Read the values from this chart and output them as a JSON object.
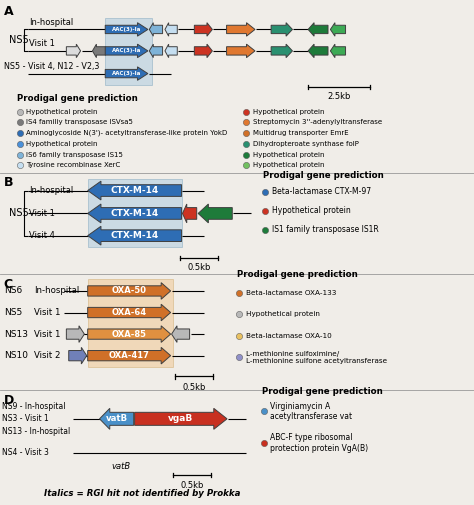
{
  "bg_color": "#f0ede8",
  "colors": {
    "dark_blue": "#2E6DB4",
    "medium_blue": "#4A90D9",
    "light_blue": "#7EB3D8",
    "very_light_blue": "#C5DEF0",
    "dark_gray": "#7A7A7A",
    "light_gray": "#B8B8B8",
    "very_light_gray": "#DCDCDC",
    "red": "#CC3322",
    "orange_str": "#E07830",
    "dark_orange": "#D07028",
    "mid_orange": "#E09040",
    "light_orange": "#E8C060",
    "dark_green": "#1E7B3A",
    "medium_green": "#3DAA55",
    "light_green": "#72C060",
    "teal_green": "#2A9070",
    "blue_vatB": "#4A90C8",
    "red_vgaB": "#C83020"
  },
  "legend_A_left_colors": [
    "#B8B8B8",
    "#7A7A7A",
    "#2E6DB4",
    "#4A90D9",
    "#7EB3D8",
    "#C5DEF0"
  ],
  "legend_A_left_texts": [
    "Hypothetical protein",
    "IS4 familiy transposase ISVsa5",
    "Aminoglycoside N(3')- acetyltransferase-like protein YokD",
    "Hypothetical protein",
    "IS6 family transposase IS15",
    "Tyrosine recombinase XerC"
  ],
  "legend_A_right_colors": [
    "#CC3322",
    "#E07830",
    "#D07028",
    "#2A9070",
    "#1E7B3A",
    "#72C060"
  ],
  "legend_A_right_texts": [
    "Hypothetical protein",
    "Streptomycin 3''-adenylyltransferase",
    "Multidrug transporter EmrE",
    "Dihydropteroate synthase folP",
    "Hypothetical protein",
    "Hypothetical protein"
  ],
  "legend_B_colors": [
    "#2E6DB4",
    "#CC3322",
    "#1E7B3A"
  ],
  "legend_B_texts": [
    "Beta-lactamase CTX-M-97",
    "Hypothetical protein",
    "IS1 family transposase IS1R"
  ],
  "legend_C_colors": [
    "#D07028",
    "#B8B8B8",
    "#E8C060",
    "#9090C8"
  ],
  "legend_C_texts": [
    "Beta-lactamase OXA-133",
    "Hypothetical protein",
    "Beta-lactamase OXA-10",
    "L-methionine sulfoximine/\nL-methionine sulfone acetyltransferase"
  ],
  "legend_D_colors": [
    "#4A90C8",
    "#C83020"
  ],
  "legend_D_texts": [
    "Virginiamycin A\nacetyltransferase vat",
    "ABC-F type ribosomal\nprotection protein VgA(B)"
  ]
}
